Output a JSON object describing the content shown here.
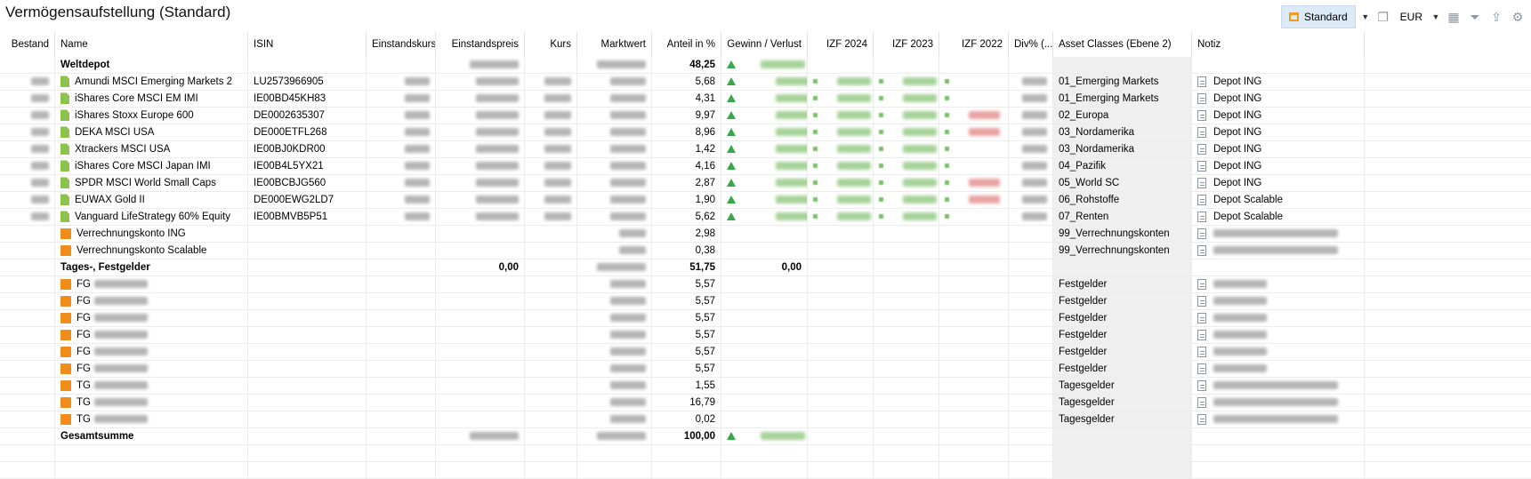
{
  "title": "Vermögensaufstellung (Standard)",
  "toolbar": {
    "view_label": "Standard",
    "currency": "EUR",
    "icons": [
      "window-icon",
      "refresh-icon",
      "calendar-icon",
      "filter-icon",
      "export-icon",
      "gear-icon"
    ]
  },
  "columns": [
    "Bestand",
    "Name",
    "ISIN",
    "Einstandskurs",
    "Einstandspreis",
    "Kurs",
    "Marktwert",
    "Anteil in %",
    "Gewinn / Verlust",
    "IZF 2024",
    "IZF 2023",
    "IZF 2022",
    "Div% (...",
    "Asset Classes (Ebene 2)",
    "Notiz"
  ],
  "rows": [
    {
      "type": "group",
      "name": "Weltdepot",
      "anteil": "48,25",
      "gv_up": true
    },
    {
      "type": "security",
      "name": "Amundi MSCI Emerging Markets 2",
      "isin": "LU2573966905",
      "anteil": "5,68",
      "asset": "01_Emerging Markets",
      "notiz": "Depot ING",
      "izf22_red": false
    },
    {
      "type": "security",
      "name": "iShares Core MSCI EM IMI",
      "isin": "IE00BD45KH83",
      "anteil": "4,31",
      "asset": "01_Emerging Markets",
      "notiz": "Depot ING",
      "izf22_red": false
    },
    {
      "type": "security",
      "name": "iShares Stoxx Europe 600",
      "isin": "DE0002635307",
      "anteil": "9,97",
      "asset": "02_Europa",
      "notiz": "Depot ING",
      "izf22_red": true
    },
    {
      "type": "security",
      "name": "DEKA MSCI USA",
      "isin": "DE000ETFL268",
      "anteil": "8,96",
      "asset": "03_Nordamerika",
      "notiz": "Depot ING",
      "izf22_red": true
    },
    {
      "type": "security",
      "name": "Xtrackers MSCI USA",
      "isin": "IE00BJ0KDR00",
      "anteil": "1,42",
      "asset": "03_Nordamerika",
      "notiz": "Depot ING",
      "izf22_red": false
    },
    {
      "type": "security",
      "name": "iShares Core MSCI Japan IMI",
      "isin": "IE00B4L5YX21",
      "anteil": "4,16",
      "asset": "04_Pazifik",
      "notiz": "Depot ING",
      "izf22_red": false
    },
    {
      "type": "security",
      "name": "SPDR MSCI World Small Caps",
      "isin": "IE00BCBJG560",
      "anteil": "2,87",
      "asset": "05_World SC",
      "notiz": "Depot ING",
      "izf22_red": true
    },
    {
      "type": "security",
      "name": "EUWAX Gold II",
      "isin": "DE000EWG2LD7",
      "anteil": "1,90",
      "asset": "06_Rohstoffe",
      "notiz": "Depot Scalable",
      "izf22_red": true
    },
    {
      "type": "security",
      "name": "Vanguard LifeStrategy 60% Equity",
      "isin": "IE00BMVB5P51",
      "anteil": "5,62",
      "asset": "07_Renten",
      "notiz": "Depot Scalable",
      "izf22_red": false
    },
    {
      "type": "account",
      "name": "Verrechnungskonto ING",
      "anteil": "2,98",
      "asset": "99_Verrechnungskonten",
      "notiz": ""
    },
    {
      "type": "account",
      "name": "Verrechnungskonto Scalable",
      "anteil": "0,38",
      "asset": "99_Verrechnungskonten",
      "notiz": ""
    },
    {
      "type": "group2",
      "name": "Tages-, Festgelder",
      "einstandspreis": "0,00",
      "anteil": "51,75",
      "gv": "0,00"
    },
    {
      "type": "deposit",
      "name": "FG",
      "anteil": "5,57",
      "asset": "Festgelder"
    },
    {
      "type": "deposit",
      "name": "FG",
      "anteil": "5,57",
      "asset": "Festgelder"
    },
    {
      "type": "deposit",
      "name": "FG",
      "anteil": "5,57",
      "asset": "Festgelder"
    },
    {
      "type": "deposit",
      "name": "FG",
      "anteil": "5,57",
      "asset": "Festgelder"
    },
    {
      "type": "deposit",
      "name": "FG",
      "anteil": "5,57",
      "asset": "Festgelder"
    },
    {
      "type": "deposit",
      "name": "FG",
      "anteil": "5,57",
      "asset": "Festgelder"
    },
    {
      "type": "deposit",
      "name": "TG",
      "anteil": "1,55",
      "asset": "Tagesgelder"
    },
    {
      "type": "deposit",
      "name": "TG",
      "anteil": "16,79",
      "asset": "Tagesgelder"
    },
    {
      "type": "deposit",
      "name": "TG",
      "anteil": "0,02",
      "asset": "Tagesgelder"
    },
    {
      "type": "total",
      "name": "Gesamtsumme",
      "anteil": "100,00",
      "gv_up": true
    }
  ]
}
